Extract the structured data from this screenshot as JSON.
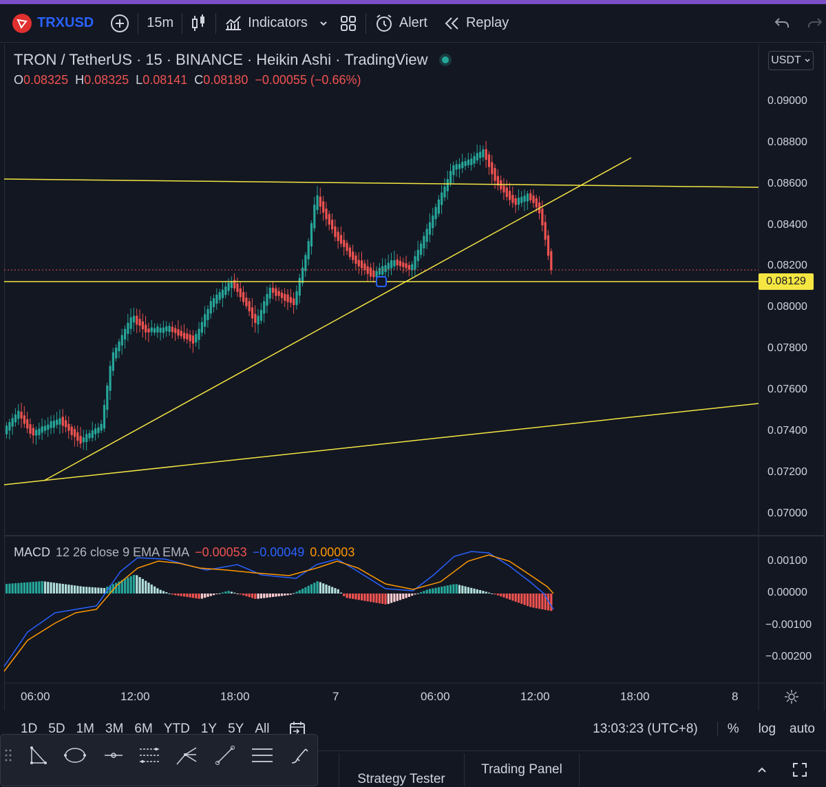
{
  "topbar": {
    "symbol": "TRXUSD",
    "interval": "15m",
    "indicators_label": "Indicators",
    "alert_label": "Alert",
    "replay_label": "Replay"
  },
  "legend": {
    "pair": "TRON / TetherUS",
    "interval": "15",
    "exchange": "BINANCE",
    "chart_type": "Heikin Ashi",
    "source": "TradingView",
    "o_label": "O",
    "o_value": "0.08325",
    "h_label": "H",
    "h_value": "0.08325",
    "l_label": "L",
    "l_value": "0.08141",
    "c_label": "C",
    "c_value": "0.08180",
    "change": "−0.00055 (−0.66%)"
  },
  "currency_button": "USDT",
  "price_axis": [
    "0.09000",
    "0.08800",
    "0.08600",
    "0.08400",
    "0.08200",
    "0.08000",
    "0.07800",
    "0.07600",
    "0.07400",
    "0.07200",
    "0.07000"
  ],
  "last_price_tag": "0.08129",
  "macd": {
    "label": "MACD",
    "params": "12 26 close 9 EMA EMA",
    "hist": "−0.00053",
    "macd_val": "−0.00049",
    "signal": "0.00003",
    "axis": [
      "0.00100",
      "0.00000",
      "−0.00100",
      "−0.00200"
    ]
  },
  "time_axis": [
    "06:00",
    "12:00",
    "18:00",
    "7",
    "06:00",
    "12:00",
    "18:00",
    "8"
  ],
  "bottombar": {
    "ranges": [
      "1D",
      "5D",
      "1M",
      "3M",
      "6M",
      "YTD",
      "1Y",
      "5Y",
      "All"
    ],
    "clock": "13:03:23 (UTC+8)",
    "percent": "%",
    "log": "log",
    "auto": "auto"
  },
  "tabs": {
    "strategy": "Strategy Tester",
    "trading": "Trading Panel"
  },
  "colors": {
    "bg": "#131722",
    "up": "#26a69a",
    "down": "#ef5350",
    "trendline": "#f5e642",
    "macd_line": "#2962ff",
    "signal_line": "#ff9800"
  }
}
